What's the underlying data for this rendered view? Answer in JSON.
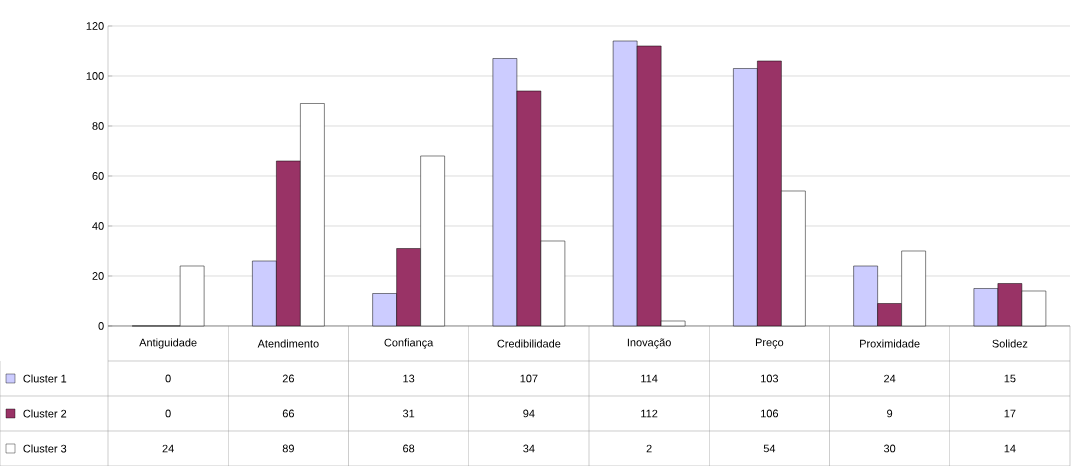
{
  "chart_data": {
    "type": "bar",
    "categories": [
      "Antiguidade",
      "Atendimento",
      "Confiança",
      "Credibilidade",
      "Inovação",
      "Preço",
      "Proximidade",
      "Solidez"
    ],
    "series": [
      {
        "name": "Cluster 1",
        "color": "#ccccff",
        "values": [
          0,
          26,
          13,
          107,
          114,
          103,
          24,
          15
        ]
      },
      {
        "name": "Cluster 2",
        "color": "#993366",
        "values": [
          0,
          66,
          31,
          94,
          112,
          106,
          9,
          17
        ]
      },
      {
        "name": "Cluster 3",
        "color": "#ffffff",
        "values": [
          24,
          89,
          68,
          34,
          2,
          54,
          30,
          14
        ]
      }
    ],
    "ylim": [
      0,
      120
    ],
    "yticks": [
      0,
      20,
      40,
      60,
      80,
      100,
      120
    ],
    "grid": "y",
    "legend": "bottom left",
    "data_labels": true
  }
}
